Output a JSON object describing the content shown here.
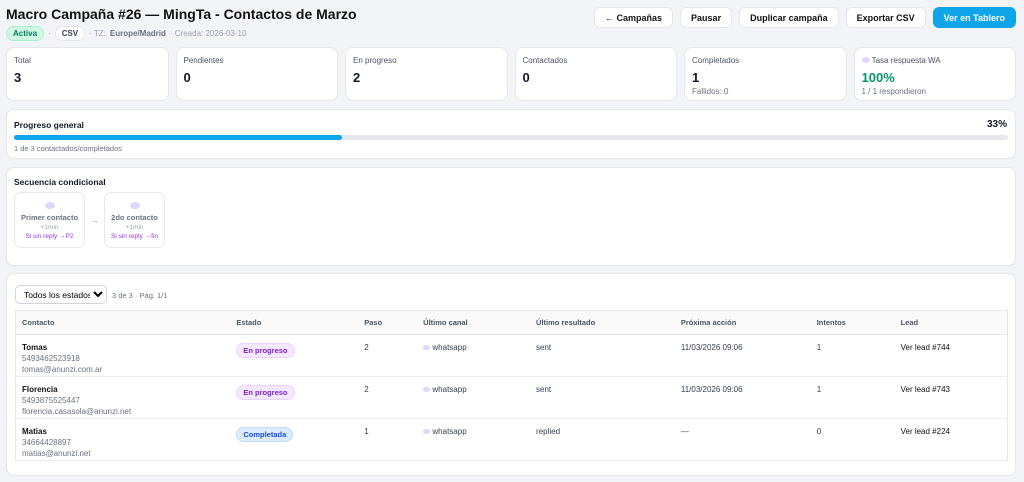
{
  "header": {
    "title": "Macro Campaña #26 — MingTa - Contactos de Marzo",
    "status": "Activa",
    "source": "CSV",
    "tz_label": "· TZ:",
    "tz": "Europe/Madrid",
    "created": "· Creada: 2026-03-10",
    "sep": "·"
  },
  "buttons": {
    "back": "← Campañas",
    "pause": "Pausar",
    "duplicate": "Duplicar campaña",
    "export": "Exportar CSV",
    "board": "Ver en Tablero"
  },
  "stats": [
    {
      "label": "Total",
      "value": "3"
    },
    {
      "label": "Pendientes",
      "value": "0"
    },
    {
      "label": "En progreso",
      "value": "2"
    },
    {
      "label": "Contactados",
      "value": "0"
    },
    {
      "label": "Completados",
      "value": "1",
      "sub": "Fallidos: 0"
    },
    {
      "label": "Tasa respuesta WA",
      "value": "100%",
      "sub": "1 / 1 respondieron",
      "icon": "chat-bubble-icon"
    }
  ],
  "progress": {
    "title": "Progreso general",
    "percent_label": "33%",
    "percent": 33,
    "caption": "1 de 3 contactados/completados"
  },
  "sequence": {
    "title": "Secuencia condicional",
    "steps": [
      {
        "name": "Primer contacto",
        "delay": "+1min",
        "cond": "Si sin reply →P2"
      },
      {
        "name": "2do contacto",
        "delay": "+1min",
        "cond": "Si sin reply →fin"
      }
    ],
    "arrow": "→"
  },
  "filter": {
    "selected": "Todos los estados",
    "info": "3 de 3 · Pág. 1/1"
  },
  "table": {
    "columns": [
      "Contacto",
      "Estado",
      "Paso",
      "Último canal",
      "Último resultado",
      "Próxima acción",
      "Intentos",
      "Lead"
    ],
    "rows": [
      {
        "name": "Tomas",
        "phone": "5493462523918",
        "email": "tomas@anunzi.com.ar",
        "status": "En progreso",
        "step": "2",
        "channel": "whatsapp",
        "result": "sent",
        "next": "11/03/2026 09:06",
        "attempts": "1",
        "lead": "Ver lead #744"
      },
      {
        "name": "Florencia",
        "phone": "5493875525447",
        "email": "florencia.casasola@anunzi.net",
        "status": "En progreso",
        "step": "2",
        "channel": "whatsapp",
        "result": "sent",
        "next": "11/03/2026 09:06",
        "attempts": "1",
        "lead": "Ver lead #743"
      },
      {
        "name": "Matias",
        "phone": "34664428897",
        "email": "matias@anunzi.net",
        "status": "Completada",
        "step": "1",
        "channel": "whatsapp",
        "result": "replied",
        "next": "—",
        "attempts": "0",
        "lead": "Ver lead #224"
      }
    ]
  },
  "colors": {
    "accent": "#0ea5e9",
    "success": "#059669",
    "progress_badge": "#7e22ce",
    "done_badge": "#1d4ed8"
  }
}
